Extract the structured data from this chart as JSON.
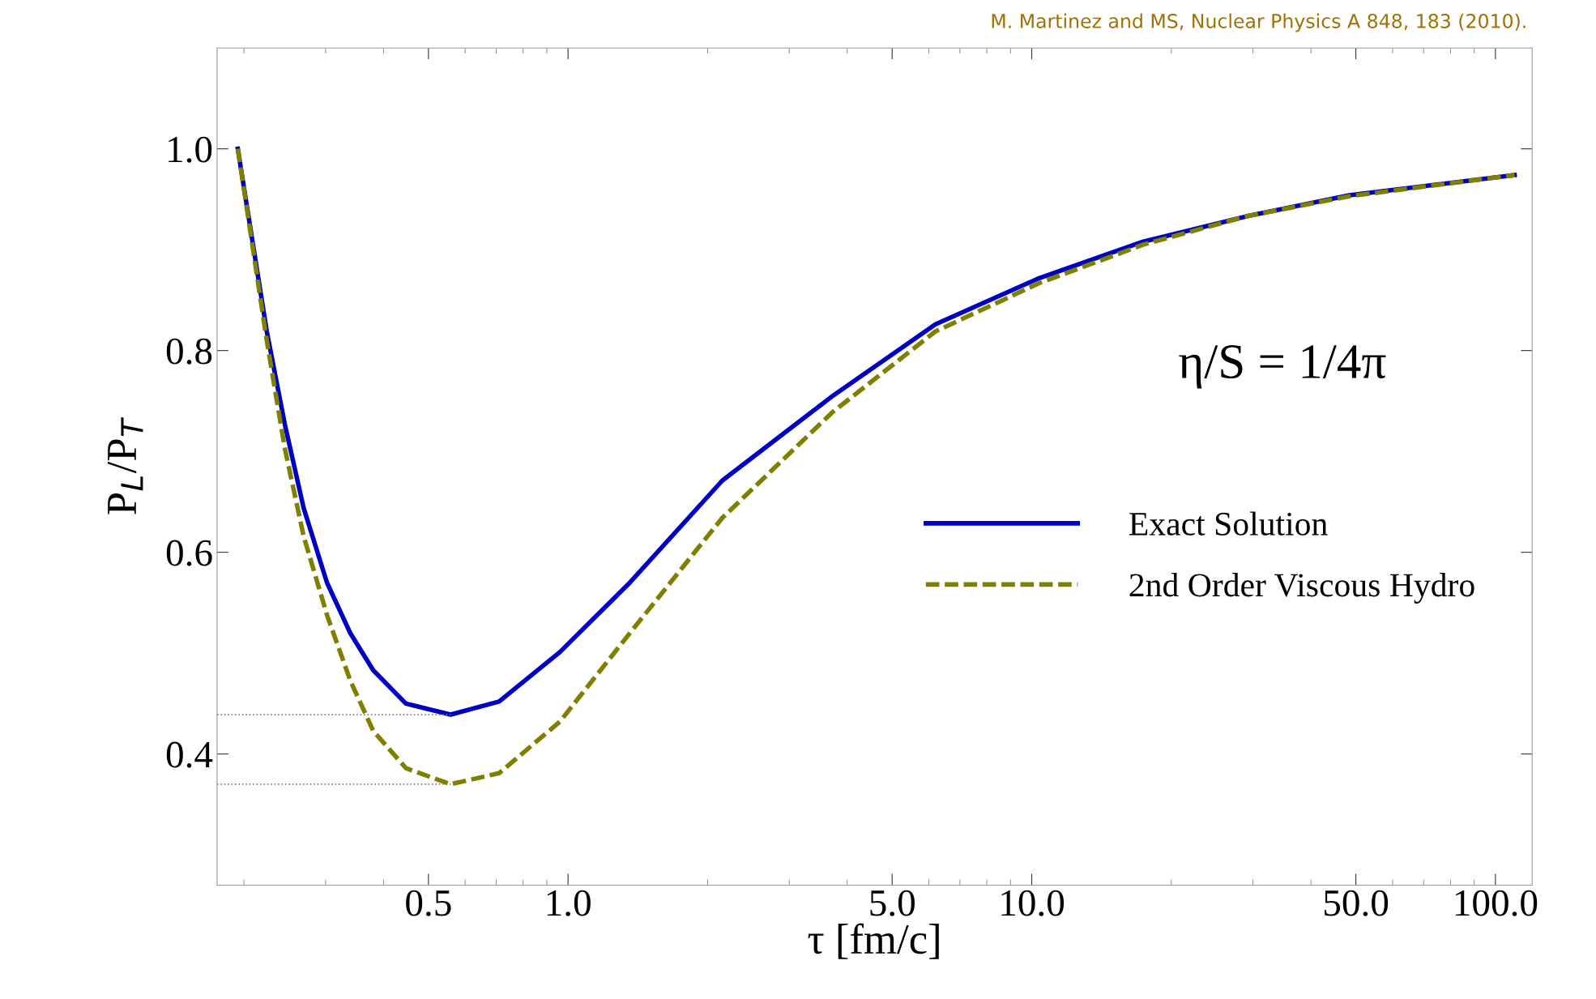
{
  "chart_data": {
    "type": "line",
    "xlabel": "τ [fm/c]",
    "ylabel": "P$_{L}$/P$_{T}$",
    "annotations": [
      "M. Martinez and MS, Nuclear Physics A 848, 183 (2010).",
      "η/S = 1/4π"
    ],
    "log": "x",
    "xlim": [
      0.175,
      120
    ],
    "ylim": [
      0.27,
      1.1
    ],
    "xticks": [
      {
        "value": 0.5,
        "label": "0.5"
      },
      {
        "value": 1,
        "label": "1.0"
      },
      {
        "value": 5,
        "label": "5.0"
      },
      {
        "value": 10,
        "label": "10.0"
      },
      {
        "value": 50,
        "label": "50.0"
      },
      {
        "value": 100,
        "label": "100.0"
      }
    ],
    "yticks": [
      {
        "value": 0.4,
        "label": "0.4"
      },
      {
        "value": 0.6,
        "label": "0.6"
      },
      {
        "value": 0.8,
        "label": "0.8"
      },
      {
        "value": 1.0,
        "label": "1.0"
      }
    ],
    "grid": false,
    "legend": "bottom right",
    "marker": "none",
    "series": [
      {
        "name": "Exact Solution",
        "color": "#0000c0",
        "line_style": "solid",
        "x": [
          0.194,
          0.224,
          0.245,
          0.269,
          0.302,
          0.339,
          0.38,
          0.447,
          0.558,
          0.71,
          0.96,
          1.36,
          2.15,
          3.72,
          6.2,
          10.4,
          17.4,
          29,
          48.4,
          110
        ],
        "values": [
          1.0,
          0.819,
          0.727,
          0.644,
          0.57,
          0.52,
          0.483,
          0.45,
          0.439,
          0.452,
          0.501,
          0.57,
          0.671,
          0.755,
          0.826,
          0.872,
          0.908,
          0.933,
          0.954,
          0.974
        ]
      },
      {
        "name": "2nd Order Viscous Hydro",
        "color": "#808000",
        "line_style": "dashed",
        "x": [
          0.194,
          0.224,
          0.245,
          0.269,
          0.302,
          0.339,
          0.38,
          0.447,
          0.558,
          0.71,
          0.96,
          1.36,
          2.15,
          3.72,
          6.2,
          10.4,
          17.4,
          29,
          48.4,
          110
        ],
        "values": [
          1.0,
          0.81,
          0.703,
          0.616,
          0.538,
          0.473,
          0.423,
          0.386,
          0.37,
          0.381,
          0.432,
          0.52,
          0.634,
          0.739,
          0.819,
          0.867,
          0.905,
          0.933,
          0.953,
          0.974
        ]
      },
      {
        "color": "#808080",
        "line_style": "dotted",
        "x": [
          0.175,
          0.558
        ],
        "values": [
          0.439,
          0.439
        ]
      },
      {
        "color": "#808080",
        "line_style": "dotted",
        "x": [
          0.175,
          0.558
        ],
        "values": [
          0.37,
          0.37
        ]
      }
    ]
  }
}
